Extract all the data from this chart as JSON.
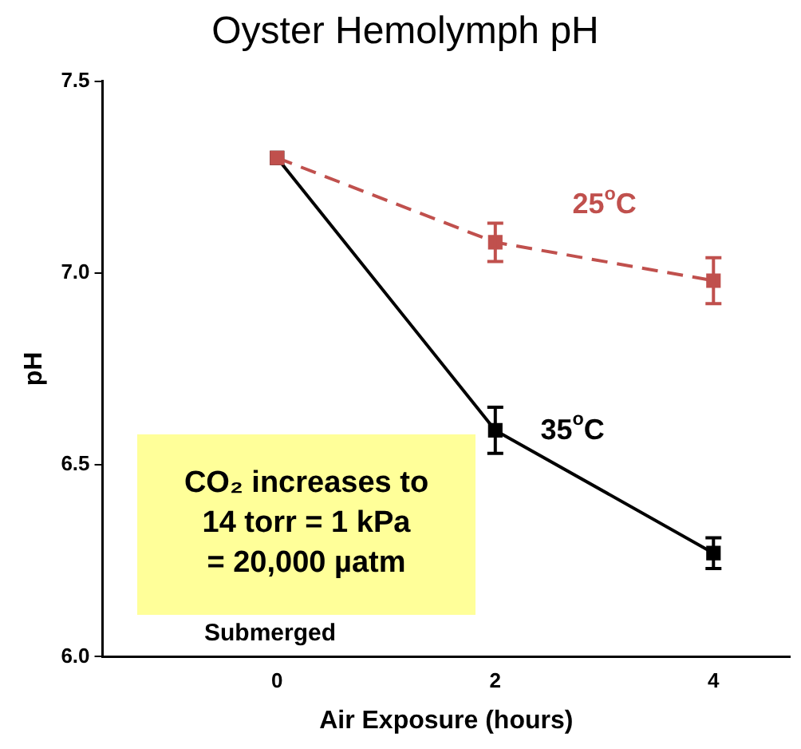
{
  "chart_data": {
    "type": "line",
    "title": "Oyster Hemolymph pH",
    "xlabel": "Air Exposure (hours)",
    "ylabel": "pH",
    "x": [
      0,
      2,
      4
    ],
    "series": [
      {
        "name": "25$^{o}$C",
        "color": "#c0504d",
        "values": [
          7.3,
          7.08,
          6.98
        ],
        "errors": [
          null,
          0.05,
          0.06
        ],
        "line_style": "dashed"
      },
      {
        "name": "35$^{o}$C",
        "color": "#000000",
        "values": [
          7.3,
          6.59,
          6.27
        ],
        "errors": [
          null,
          0.06,
          0.04
        ],
        "line_style": "solid"
      }
    ],
    "xlim": [
      -1.6,
      4.7
    ],
    "xticks": [
      0,
      2,
      4
    ],
    "ylim": [
      6,
      7.5
    ],
    "yticks": [
      {
        "value": 6,
        "label": "6.0"
      },
      {
        "value": 6.5,
        "label": "6.5"
      },
      {
        "value": 7,
        "label": "7.0"
      },
      {
        "value": 7.5,
        "label": "7.5"
      }
    ],
    "marker": "square",
    "grid": false,
    "legend": false,
    "annotations": [
      "Submerged",
      "CO₂ increases to\n14 torr = 1 kPa\n= 20,000 µatm"
    ]
  }
}
